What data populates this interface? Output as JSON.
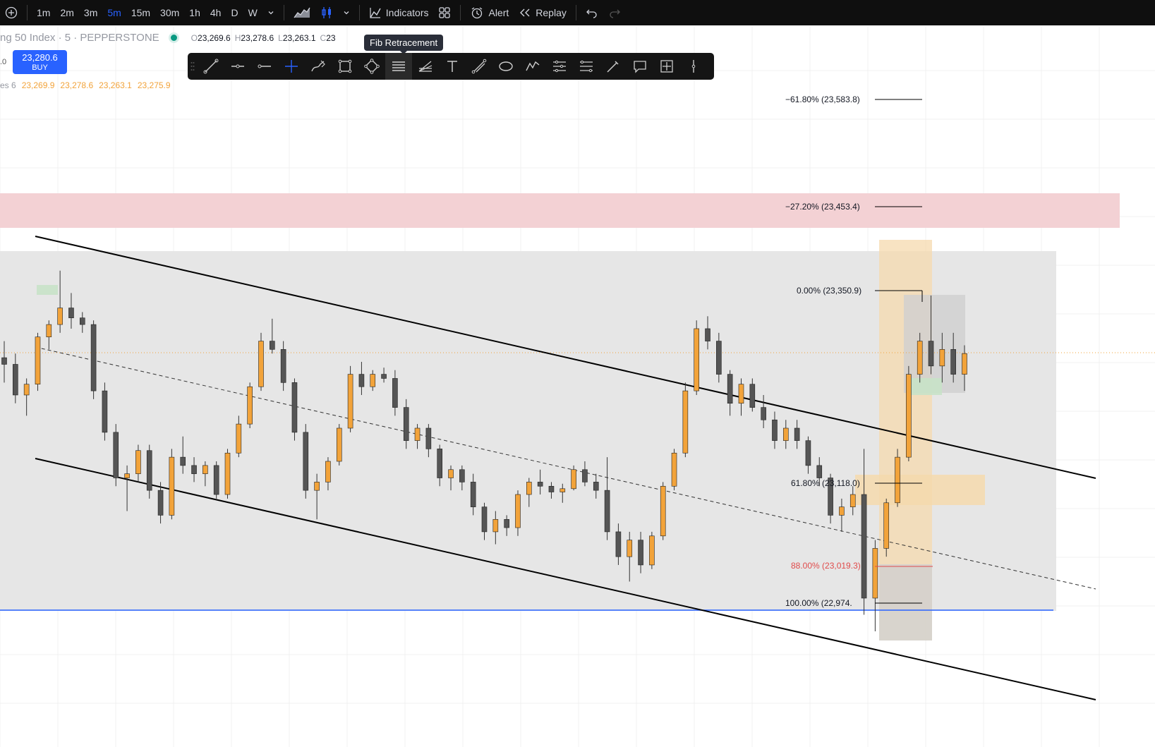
{
  "toolbar": {
    "timeframes": [
      "1m",
      "2m",
      "3m",
      "5m",
      "15m",
      "30m",
      "1h",
      "4h",
      "D",
      "W"
    ],
    "active_timeframe": "5m",
    "indicators_label": "Indicators",
    "alert_label": "Alert",
    "replay_label": "Replay"
  },
  "legend": {
    "symbol": "ng 50 Index · 5 · PEPPERSTONE",
    "o_label": "O",
    "o_value": "23,269.6",
    "h_label": "H",
    "h_value": "23,278.6",
    "l_label": "L",
    "l_value": "23,263.1",
    "c_label": "C",
    "c_value": "23",
    "change_tail": "%)"
  },
  "buy": {
    "price": "23,280.6",
    "label": "BUY"
  },
  "left_value": ".0",
  "volume_row": {
    "label": "es 6",
    "values": [
      "23,269.9",
      "23,278.6",
      "23,263.1",
      "23,275.9"
    ]
  },
  "tooltip": "Fib Retracement",
  "drawing_tools": [
    "trend-line",
    "horizontal-ray",
    "horizontal-line",
    "crosshair",
    "brush",
    "rectangle",
    "polygon",
    "fib-retracement",
    "fib-fan",
    "text",
    "path",
    "ellipse",
    "zigzag",
    "parallel-channel",
    "regression",
    "pen",
    "callout",
    "measure",
    "vertical-line"
  ],
  "selected_tool": "fib-retracement",
  "fib_levels": [
    {
      "label": "−61.80% (23,583.8)",
      "color": "#131722"
    },
    {
      "label": "−27.20% (23,453.4)",
      "color": "#131722"
    },
    {
      "label": "0.00% (23,350.9)",
      "color": "#131722"
    },
    {
      "label": "61.80% (23,118.0)",
      "color": "#131722"
    },
    {
      "label": "88.00% (23,019.3)",
      "color": "#e04b4b"
    },
    {
      "label": "100.00% (22,974.",
      "color": "#131722"
    }
  ],
  "colors": {
    "bull": "#f2a33a",
    "bear": "#555555",
    "accent": "#2962ff",
    "zone_red": "#f3d1d4",
    "zone_orange": "#f5d9ad"
  },
  "chart_data": {
    "type": "candlestick",
    "candles_ohlc": [
      [
        23270,
        23290,
        23240,
        23262
      ],
      [
        23262,
        23275,
        23215,
        23225
      ],
      [
        23225,
        23245,
        23200,
        23238
      ],
      [
        23238,
        23300,
        23230,
        23295
      ],
      [
        23295,
        23315,
        23280,
        23310
      ],
      [
        23310,
        23375,
        23300,
        23330
      ],
      [
        23330,
        23348,
        23305,
        23318
      ],
      [
        23318,
        23325,
        23300,
        23310
      ],
      [
        23310,
        23315,
        23220,
        23230
      ],
      [
        23230,
        23240,
        23170,
        23180
      ],
      [
        23180,
        23190,
        23115,
        23125
      ],
      [
        23125,
        23140,
        23085,
        23130
      ],
      [
        23130,
        23165,
        23120,
        23158
      ],
      [
        23158,
        23165,
        23100,
        23110
      ],
      [
        23110,
        23120,
        23070,
        23080
      ],
      [
        23080,
        23160,
        23075,
        23150
      ],
      [
        23150,
        23175,
        23130,
        23140
      ],
      [
        23140,
        23150,
        23120,
        23130
      ],
      [
        23130,
        23145,
        23115,
        23140
      ],
      [
        23140,
        23145,
        23100,
        23105
      ],
      [
        23105,
        23160,
        23100,
        23155
      ],
      [
        23155,
        23200,
        23150,
        23190
      ],
      [
        23190,
        23240,
        23185,
        23235
      ],
      [
        23235,
        23300,
        23230,
        23290
      ],
      [
        23290,
        23317,
        23275,
        23280
      ],
      [
        23280,
        23290,
        23230,
        23240
      ],
      [
        23240,
        23245,
        23170,
        23180
      ],
      [
        23180,
        23190,
        23100,
        23110
      ],
      [
        23110,
        23130,
        23075,
        23120
      ],
      [
        23120,
        23150,
        23110,
        23145
      ],
      [
        23145,
        23190,
        23140,
        23185
      ],
      [
        23185,
        23260,
        23180,
        23250
      ],
      [
        23250,
        23265,
        23225,
        23235
      ],
      [
        23235,
        23255,
        23230,
        23250
      ],
      [
        23250,
        23258,
        23240,
        23245
      ],
      [
        23245,
        23255,
        23200,
        23210
      ],
      [
        23210,
        23220,
        23160,
        23170
      ],
      [
        23170,
        23190,
        23160,
        23185
      ],
      [
        23185,
        23190,
        23150,
        23160
      ],
      [
        23160,
        23165,
        23115,
        23125
      ],
      [
        23125,
        23140,
        23110,
        23135
      ],
      [
        23135,
        23140,
        23110,
        23120
      ],
      [
        23120,
        23130,
        23080,
        23090
      ],
      [
        23090,
        23095,
        23050,
        23060
      ],
      [
        23060,
        23085,
        23045,
        23075
      ],
      [
        23075,
        23080,
        23055,
        23065
      ],
      [
        23065,
        23110,
        23055,
        23105
      ],
      [
        23105,
        23125,
        23090,
        23120
      ],
      [
        23120,
        23135,
        23105,
        23115
      ],
      [
        23115,
        23120,
        23100,
        23108
      ],
      [
        23108,
        23118,
        23095,
        23112
      ],
      [
        23112,
        23140,
        23110,
        23135
      ],
      [
        23135,
        23145,
        23115,
        23120
      ],
      [
        23120,
        23130,
        23100,
        23110
      ],
      [
        23110,
        23150,
        23050,
        23060
      ],
      [
        23060,
        23070,
        23020,
        23030
      ],
      [
        23030,
        23060,
        23000,
        23050
      ],
      [
        23050,
        23060,
        23010,
        23020
      ],
      [
        23020,
        23060,
        23015,
        23055
      ],
      [
        23055,
        23120,
        23050,
        23115
      ],
      [
        23115,
        23160,
        23110,
        23155
      ],
      [
        23155,
        23240,
        23150,
        23230
      ],
      [
        23230,
        23315,
        23225,
        23305
      ],
      [
        23305,
        23320,
        23280,
        23290
      ],
      [
        23290,
        23300,
        23240,
        23250
      ],
      [
        23250,
        23255,
        23200,
        23215
      ],
      [
        23215,
        23245,
        23200,
        23238
      ],
      [
        23238,
        23245,
        23205,
        23210
      ],
      [
        23210,
        23225,
        23185,
        23195
      ],
      [
        23195,
        23205,
        23160,
        23170
      ],
      [
        23170,
        23195,
        23160,
        23185
      ],
      [
        23185,
        23195,
        23160,
        23170
      ],
      [
        23170,
        23175,
        23130,
        23140
      ],
      [
        23140,
        23150,
        23115,
        23125
      ],
      [
        23125,
        23130,
        23070,
        23080
      ],
      [
        23080,
        23100,
        23060,
        23090
      ],
      [
        23090,
        23115,
        23080,
        23105
      ],
      [
        23105,
        23160,
        22960,
        22980
      ],
      [
        22980,
        23050,
        22940,
        23040
      ],
      [
        23040,
        23100,
        23030,
        23095
      ],
      [
        23095,
        23160,
        23090,
        23150
      ],
      [
        23150,
        23260,
        23145,
        23250
      ],
      [
        23250,
        23300,
        23240,
        23290
      ],
      [
        23290,
        23345,
        23250,
        23260
      ],
      [
        23260,
        23300,
        23240,
        23280
      ],
      [
        23280,
        23300,
        23240,
        23250
      ],
      [
        23250,
        23285,
        23230,
        23275
      ]
    ],
    "y_axis_reference": {
      "price_23583_8": -61.8,
      "price_23453_4": -27.2,
      "price_23350_9": 0,
      "price_23118_0": 61.8,
      "price_23019_3": 88,
      "price_22974": 100
    }
  }
}
